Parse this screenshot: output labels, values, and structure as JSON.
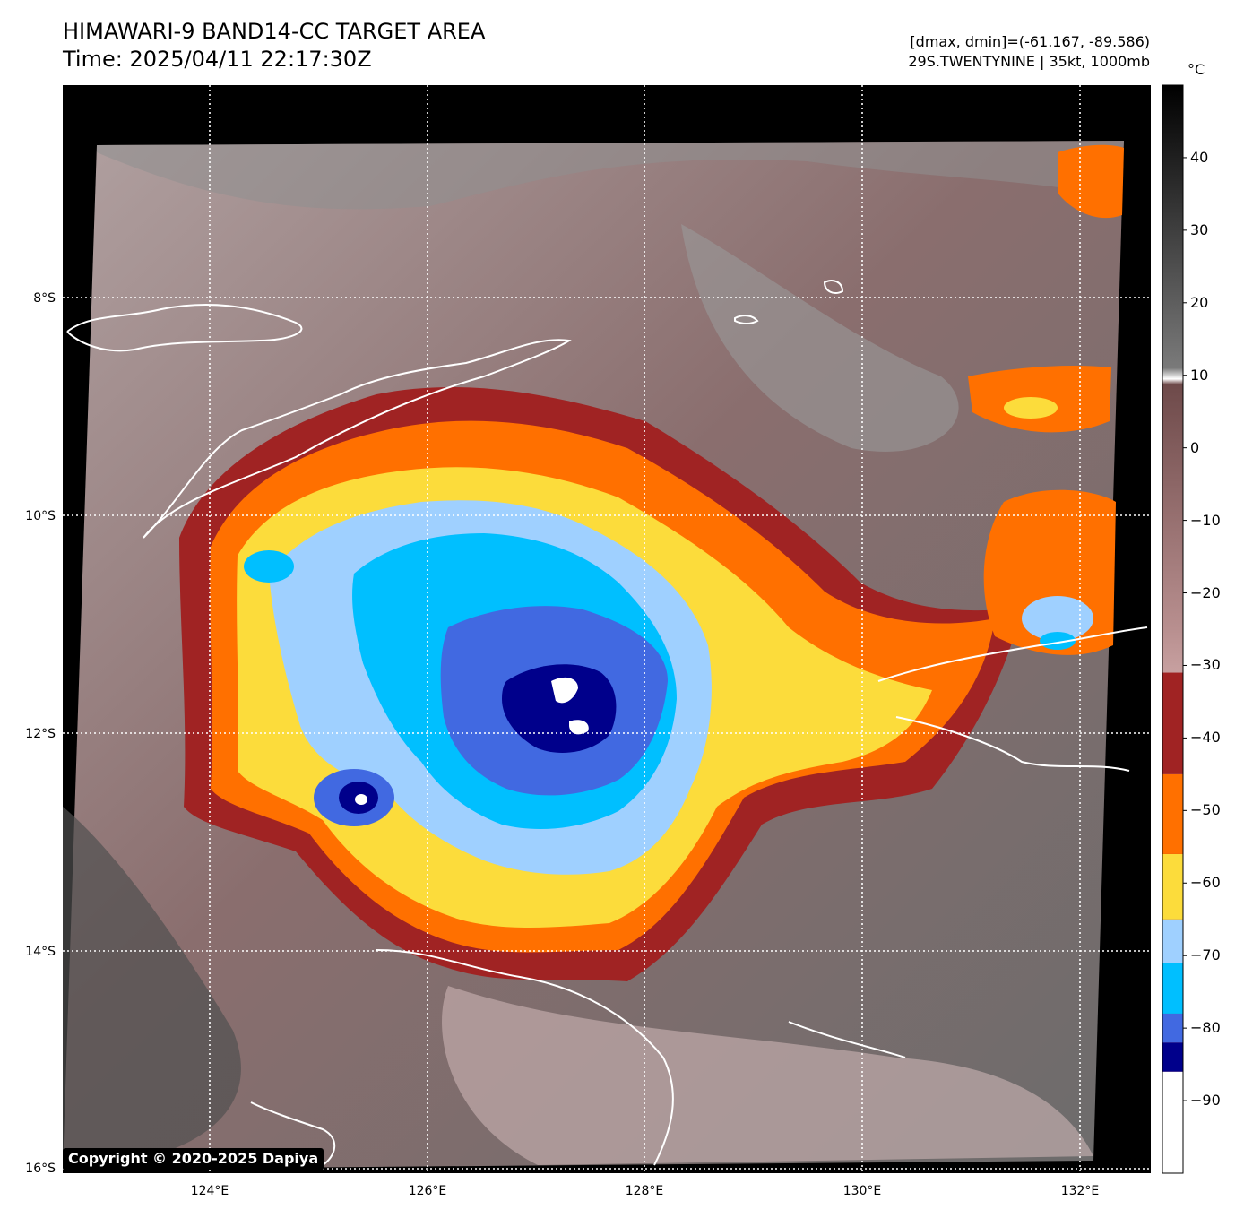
{
  "header": {
    "title_line1": "HIMAWARI-9 BAND14-CC TARGET AREA",
    "title_line2": "Time: 2025/04/11 22:17:30Z",
    "info_line1": "[dmax, dmin]=(-61.167, -89.586)",
    "info_line2": "29S.TWENTYNINE | 35kt, 1000mb"
  },
  "map": {
    "lon_labels": [
      "124°E",
      "126°E",
      "128°E",
      "130°E",
      "132°E"
    ],
    "lat_labels": [
      "8°S",
      "10°S",
      "12°S",
      "14°S",
      "16°S"
    ],
    "lon_range": [
      122.7,
      132.7
    ],
    "lat_range": [
      -16.0,
      -6.0
    ],
    "gridlines": true
  },
  "colorbar": {
    "unit": "°C",
    "ticks": [
      "40",
      "30",
      "20",
      "10",
      "0",
      "−10",
      "−20",
      "−30",
      "−40",
      "−50",
      "−60",
      "−70",
      "−80",
      "−90"
    ],
    "range": [
      -100,
      50
    ],
    "bands": [
      {
        "from": -100,
        "to": -86,
        "color": "#ffffff"
      },
      {
        "from": -86,
        "to": -82,
        "color": "#00008b"
      },
      {
        "from": -82,
        "to": -78,
        "color": "#4169e1"
      },
      {
        "from": -78,
        "to": -71,
        "color": "#00bfff"
      },
      {
        "from": -71,
        "to": -65,
        "color": "#9fd0ff"
      },
      {
        "from": -65,
        "to": -56,
        "color": "#fcdc3b"
      },
      {
        "from": -56,
        "to": -45,
        "color": "#ff7000"
      },
      {
        "from": -45,
        "to": -31,
        "color": "#a02323"
      }
    ]
  },
  "footer": {
    "copyright": "Copyright © 2020-2025 Dapiya"
  }
}
